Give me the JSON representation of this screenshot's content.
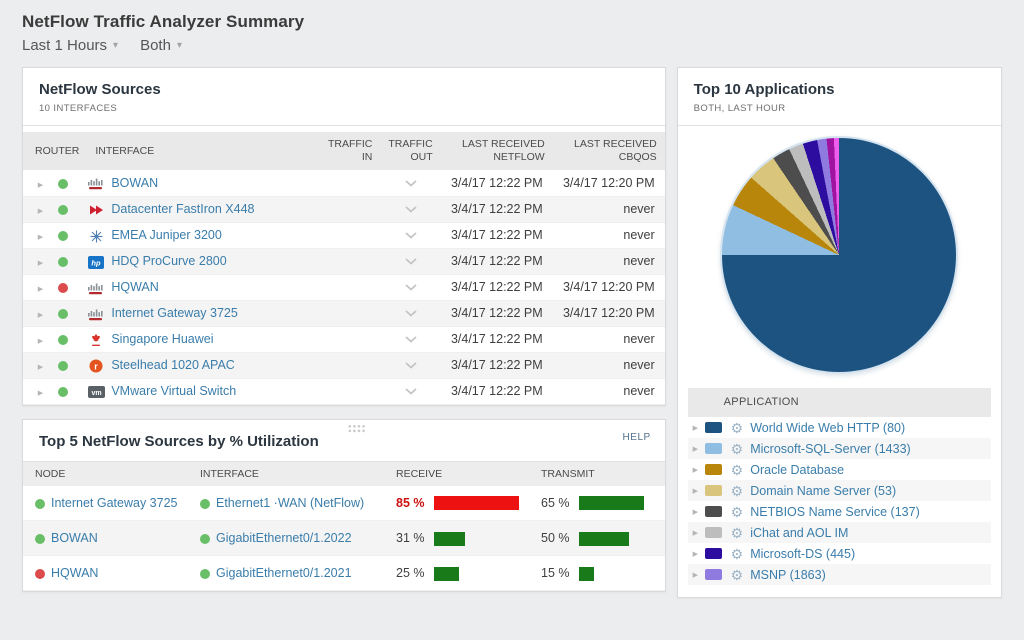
{
  "page": {
    "title": "NetFlow Traffic Analyzer Summary",
    "filters": {
      "time": "Last 1 Hours",
      "direction": "Both"
    }
  },
  "icons": {
    "expand-arrow": "▶",
    "gear": "⚙",
    "filter-caret": "▾",
    "vendor_set": [
      "cisco-icon",
      "brocade-icon",
      "juniper-icon",
      "hp-icon",
      "huawei-icon",
      "riverbed-icon",
      "vmware-icon"
    ]
  },
  "colors": {
    "status_up": "#68bf68",
    "status_down": "#dc4b4b",
    "bar_green": "#187a18",
    "bar_red": "#ee1111",
    "link": "#3a7dab"
  },
  "netflow_sources": {
    "title": "NetFlow Sources",
    "subtitle": "10 INTERFACES",
    "columns": {
      "router": "ROUTER",
      "interface": "INTERFACE",
      "traffic_in": "TRAFFIC IN",
      "traffic_out": "TRAFFIC OUT",
      "last_netflow": "LAST RECEIVED NETFLOW",
      "last_cbqos": "LAST RECEIVED CBQOS"
    },
    "rows": [
      {
        "status": "up",
        "status_color": "#68bf68",
        "vendor": "cisco",
        "name": "BOWAN",
        "last_netflow": "3/4/17 12:22 PM",
        "last_cbqos": "3/4/17 12:20 PM"
      },
      {
        "status": "up",
        "status_color": "#68bf68",
        "vendor": "brocade",
        "name": "Datacenter FastIron X448",
        "last_netflow": "3/4/17 12:22 PM",
        "last_cbqos": "never"
      },
      {
        "status": "up",
        "status_color": "#68bf68",
        "vendor": "juniper",
        "name": "EMEA Juniper 3200",
        "last_netflow": "3/4/17 12:22 PM",
        "last_cbqos": "never"
      },
      {
        "status": "up",
        "status_color": "#68bf68",
        "vendor": "hp",
        "name": "HDQ ProCurve 2800",
        "last_netflow": "3/4/17 12:22 PM",
        "last_cbqos": "never"
      },
      {
        "status": "down",
        "status_color": "#dc4b4b",
        "vendor": "cisco",
        "name": "HQWAN",
        "last_netflow": "3/4/17 12:22 PM",
        "last_cbqos": "3/4/17 12:20 PM"
      },
      {
        "status": "up",
        "status_color": "#68bf68",
        "vendor": "cisco",
        "name": "Internet Gateway 3725",
        "last_netflow": "3/4/17 12:22 PM",
        "last_cbqos": "3/4/17 12:20 PM"
      },
      {
        "status": "up",
        "status_color": "#68bf68",
        "vendor": "huawei",
        "name": "Singapore Huawei",
        "last_netflow": "3/4/17 12:22 PM",
        "last_cbqos": "never"
      },
      {
        "status": "up",
        "status_color": "#68bf68",
        "vendor": "riverbed",
        "name": "Steelhead 1020 APAC",
        "last_netflow": "3/4/17 12:22 PM",
        "last_cbqos": "never"
      },
      {
        "status": "up",
        "status_color": "#68bf68",
        "vendor": "vmware",
        "name": "VMware Virtual Switch",
        "last_netflow": "3/4/17 12:22 PM",
        "last_cbqos": "never"
      }
    ]
  },
  "top5": {
    "title": "Top 5 NetFlow Sources by % Utilization",
    "help_label": "HELP",
    "columns": {
      "node": "NODE",
      "interface": "INTERFACE",
      "receive": "RECEIVE",
      "transmit": "TRANSMIT"
    },
    "rows": [
      {
        "node": "Internet Gateway 3725",
        "node_status": "up",
        "node_status_color": "#68bf68",
        "interface": "Ethernet1 ·WAN (NetFlow)",
        "iface_status": "up",
        "iface_status_color": "#68bf68",
        "receive": {
          "label": "85 %",
          "pct": 85,
          "bar_color": "#ee1111",
          "text_color": "#cc1111",
          "weight": "bold"
        },
        "transmit": {
          "label": "65 %",
          "pct": 65,
          "bar_color": "#187a18",
          "text_color": "#3f3f3f",
          "weight": "normal"
        }
      },
      {
        "node": "BOWAN",
        "node_status": "up",
        "node_status_color": "#68bf68",
        "interface": "GigabitEthernet0/1.2022",
        "iface_status": "up",
        "iface_status_color": "#68bf68",
        "receive": {
          "label": "31 %",
          "pct": 31,
          "bar_color": "#187a18",
          "text_color": "#3f3f3f",
          "weight": "normal"
        },
        "transmit": {
          "label": "50 %",
          "pct": 50,
          "bar_color": "#187a18",
          "text_color": "#3f3f3f",
          "weight": "normal"
        }
      },
      {
        "node": "HQWAN",
        "node_status": "down",
        "node_status_color": "#dc4b4b",
        "interface": "GigabitEthernet0/1.2021",
        "iface_status": "up",
        "iface_status_color": "#68bf68",
        "receive": {
          "label": "25 %",
          "pct": 25,
          "bar_color": "#187a18",
          "text_color": "#3f3f3f",
          "weight": "normal"
        },
        "transmit": {
          "label": "15 %",
          "pct": 15,
          "bar_color": "#187a18",
          "text_color": "#3f3f3f",
          "weight": "normal"
        }
      }
    ]
  },
  "applications": {
    "title": "Top 10 Applications",
    "subtitle": "BOTH, LAST HOUR",
    "legend_header": "APPLICATION",
    "legend": [
      {
        "label": "World Wide Web HTTP (80)",
        "color": "#1d5381"
      },
      {
        "label": "Microsoft-SQL-Server (1433)",
        "color": "#8fbee2"
      },
      {
        "label": "Oracle Database",
        "color": "#b8860b"
      },
      {
        "label": "Domain Name Server (53)",
        "color": "#d9c57b"
      },
      {
        "label": "NETBIOS Name Service (137)",
        "color": "#4d4d4d"
      },
      {
        "label": "iChat and AOL IM",
        "color": "#bdbdbd"
      },
      {
        "label": "Microsoft-DS (445)",
        "color": "#2d0da0"
      },
      {
        "label": "MSNP (1863)",
        "color": "#8f7ae0"
      }
    ]
  },
  "chart_data": {
    "type": "pie",
    "title": "Top 10 Applications",
    "subtitle": "BOTH, LAST HOUR",
    "unit": "percent of traffic (estimated from slice angles)",
    "start_angle": "12 o'clock, clockwise",
    "legend_position": "bottom-table",
    "slices": [
      {
        "label": "World Wide Web HTTP (80)",
        "value": 75,
        "color": "#1d5381"
      },
      {
        "label": "Microsoft-SQL-Server (1433)",
        "value": 7,
        "color": "#8fbee2"
      },
      {
        "label": "Oracle Database",
        "value": 4.5,
        "color": "#b8860b"
      },
      {
        "label": "Domain Name Server (53)",
        "value": 4,
        "color": "#d9c57b"
      },
      {
        "label": "NETBIOS Name Service (137)",
        "value": 2.5,
        "color": "#4d4d4d"
      },
      {
        "label": "iChat and AOL IM",
        "value": 2,
        "color": "#bdbdbd"
      },
      {
        "label": "Microsoft-DS (445)",
        "value": 2,
        "color": "#2d0da0"
      },
      {
        "label": "MSNP (1863)",
        "value": 1.3,
        "color": "#8f7ae0"
      },
      {
        "label": "",
        "value": 1,
        "color": "#a013a0"
      },
      {
        "label": "",
        "value": 0.7,
        "color": "#ee5dee"
      }
    ]
  }
}
